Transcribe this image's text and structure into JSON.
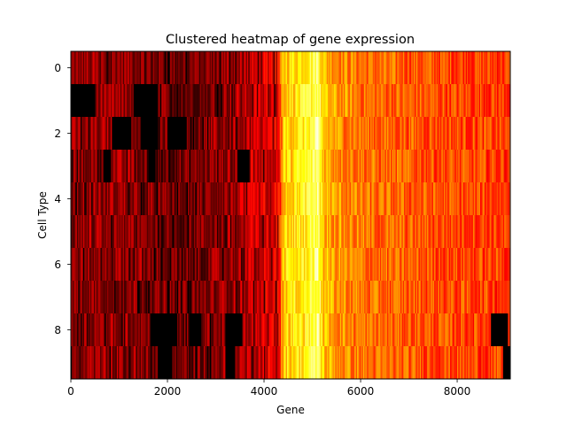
{
  "chart_data": {
    "type": "heatmap",
    "title": "Clustered heatmap of gene expression",
    "xlabel": "Gene",
    "ylabel": "Cell Type",
    "xlim": [
      0,
      9100
    ],
    "ylim": [
      9.5,
      -0.5
    ],
    "x_ticks": [
      0,
      2000,
      4000,
      6000,
      8000
    ],
    "y_ticks": [
      0,
      2,
      4,
      6,
      8
    ],
    "rows": 10,
    "colormap": "hot",
    "grid": false,
    "legend": "none",
    "column_profile": [
      {
        "gene": 0,
        "level": 0.2
      },
      {
        "gene": 400,
        "level": 0.22
      },
      {
        "gene": 800,
        "level": 0.22
      },
      {
        "gene": 1200,
        "level": 0.22
      },
      {
        "gene": 1600,
        "level": 0.2
      },
      {
        "gene": 2000,
        "level": 0.17
      },
      {
        "gene": 2400,
        "level": 0.17
      },
      {
        "gene": 2800,
        "level": 0.19
      },
      {
        "gene": 3200,
        "level": 0.22
      },
      {
        "gene": 3600,
        "level": 0.26
      },
      {
        "gene": 4000,
        "level": 0.3
      },
      {
        "gene": 4300,
        "level": 0.34
      },
      {
        "gene": 4400,
        "level": 0.68
      },
      {
        "gene": 4800,
        "level": 0.74
      },
      {
        "gene": 5000,
        "level": 0.8
      },
      {
        "gene": 5100,
        "level": 0.88
      },
      {
        "gene": 5250,
        "level": 0.64
      },
      {
        "gene": 5600,
        "level": 0.58
      },
      {
        "gene": 6200,
        "level": 0.52
      },
      {
        "gene": 7000,
        "level": 0.5
      },
      {
        "gene": 8000,
        "level": 0.47
      },
      {
        "gene": 9100,
        "level": 0.45
      }
    ],
    "dark_blocks": [
      {
        "row": 1,
        "x0": 0,
        "x1": 500
      },
      {
        "row": 1,
        "x0": 1300,
        "x1": 1800
      },
      {
        "row": 2,
        "x0": 850,
        "x1": 1250
      },
      {
        "row": 2,
        "x0": 1450,
        "x1": 1800
      },
      {
        "row": 2,
        "x0": 2000,
        "x1": 2400
      },
      {
        "row": 3,
        "x0": 670,
        "x1": 830
      },
      {
        "row": 3,
        "x0": 1600,
        "x1": 1750
      },
      {
        "row": 3,
        "x0": 3450,
        "x1": 3700
      },
      {
        "row": 8,
        "x0": 1650,
        "x1": 2200
      },
      {
        "row": 8,
        "x0": 2450,
        "x1": 2700
      },
      {
        "row": 8,
        "x0": 3200,
        "x1": 3550
      },
      {
        "row": 8,
        "x0": 8700,
        "x1": 9050
      },
      {
        "row": 9,
        "x0": 1800,
        "x1": 2100
      },
      {
        "row": 9,
        "x0": 3200,
        "x1": 3400
      },
      {
        "row": 9,
        "x0": 8950,
        "x1": 9100
      }
    ]
  }
}
